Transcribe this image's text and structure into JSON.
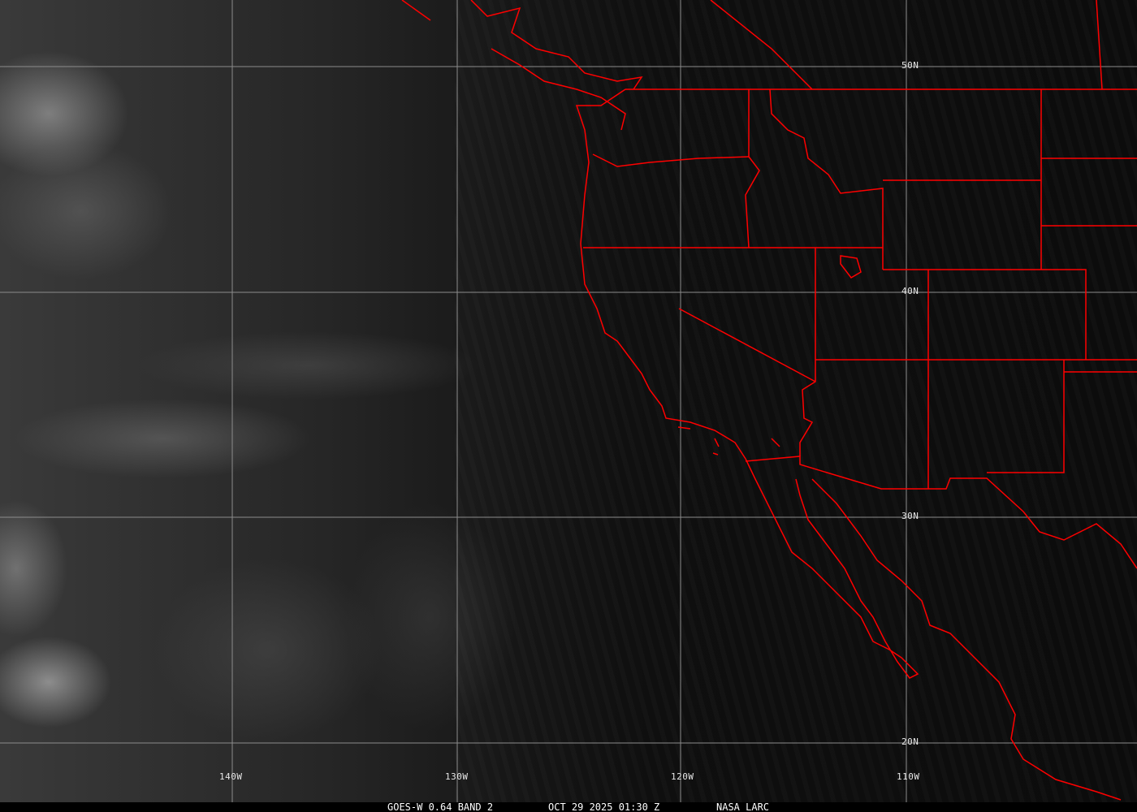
{
  "map": {
    "type": "satellite-visible-imagery",
    "border_color": "#ff0000",
    "grid_color": "#9a9a9a",
    "longitude_labels": [
      "140W",
      "130W",
      "120W",
      "110W"
    ],
    "latitude_labels": [
      "50N",
      "40N",
      "30N",
      "20N"
    ]
  },
  "caption": {
    "satellite": "GOES-W 0.64 BAND 2",
    "datetime": "OCT 29 2025 01:30 Z",
    "source": "NASA LARC"
  }
}
